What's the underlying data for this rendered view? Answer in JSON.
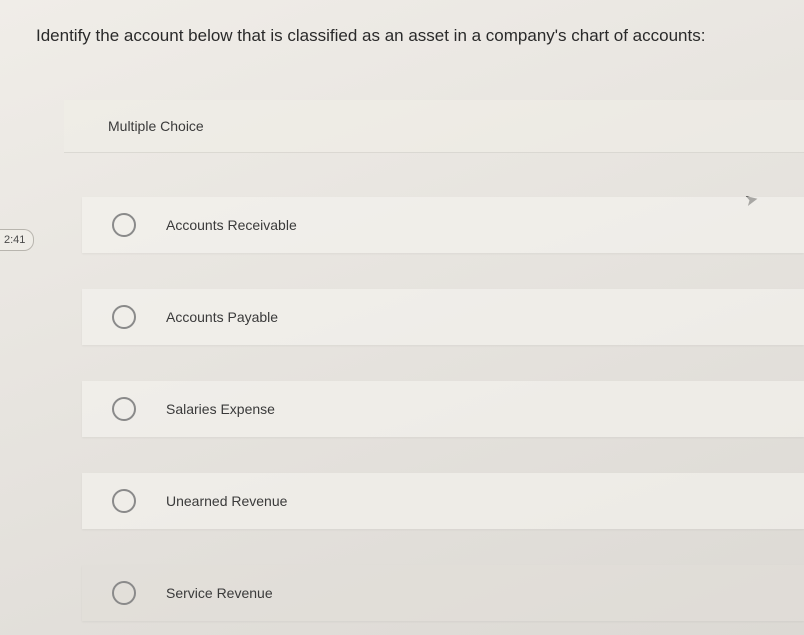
{
  "question": {
    "text": "Identify the account below that is classified as an asset in a company's chart of accounts:"
  },
  "section": {
    "header": "Multiple Choice"
  },
  "options": [
    {
      "label": "Accounts Receivable"
    },
    {
      "label": "Accounts Payable"
    },
    {
      "label": "Salaries Expense"
    },
    {
      "label": "Unearned Revenue"
    },
    {
      "label": "Service Revenue"
    }
  ],
  "timer": {
    "value": "2:41"
  },
  "colors": {
    "bg_top": "#f0ede8",
    "bg_bottom": "#dcd9d4",
    "text": "#2a2a2a",
    "radio_border": "#8a8a8a",
    "panel_bg": "rgba(245,243,238,0.65)"
  }
}
